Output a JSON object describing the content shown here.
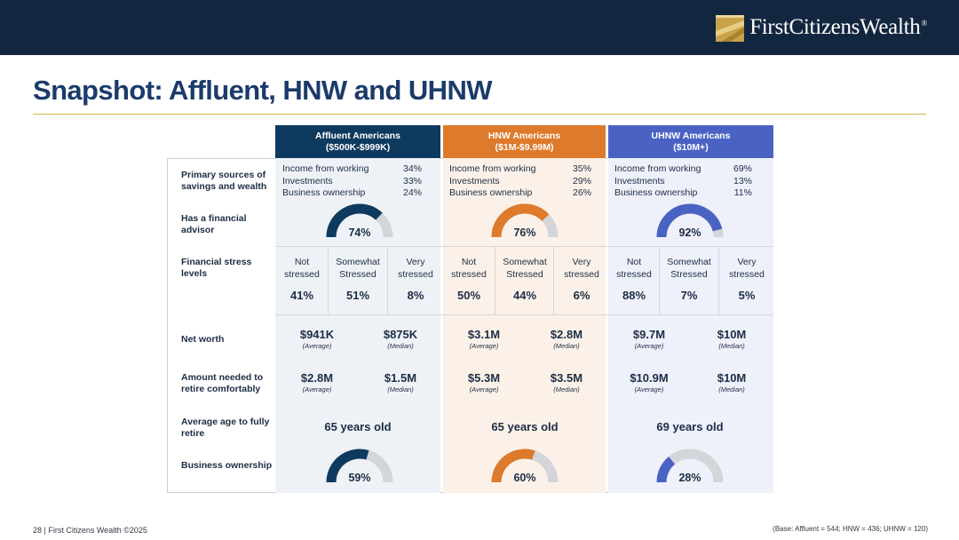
{
  "header": {
    "brand": "FirstCitizensWealth",
    "reg": "®",
    "colors": {
      "bar": "#12263f",
      "gold": "#c9a24a"
    }
  },
  "title": "Snapshot: Affluent, HNW and UHNW",
  "row_labels": {
    "sources": "Primary sources of savings and wealth",
    "advisor": "Has a financial advisor",
    "stress": "Financial stress levels",
    "networth": "Net worth",
    "retire_amount": "Amount needed to retire comfortably",
    "retire_age": "Average age to fully retire",
    "business": "Business ownership"
  },
  "segments": [
    {
      "name": "Affluent Americans",
      "range": "($500K-$999K)",
      "color": "#0e3a5f",
      "bg": "#eef2f7",
      "sources": [
        {
          "label": "Income from working",
          "value": "34%"
        },
        {
          "label": "Investments",
          "value": "33%"
        },
        {
          "label": "Business ownership",
          "value": "24%"
        }
      ],
      "advisor": {
        "label": "74%",
        "value": 0.74
      },
      "stress": [
        {
          "label": "Not stressed",
          "value": "41%"
        },
        {
          "label": "Somewhat Stressed",
          "value": "51%"
        },
        {
          "label": "Very stressed",
          "value": "8%"
        }
      ],
      "networth": [
        {
          "value": "$941K",
          "sub": "(Average)"
        },
        {
          "value": "$875K",
          "sub": "(Median)"
        }
      ],
      "retire_amount": [
        {
          "value": "$2.8M",
          "sub": "(Average)"
        },
        {
          "value": "$1.5M",
          "sub": "(Median)"
        }
      ],
      "retire_age": "65 years old",
      "business": {
        "label": "59%",
        "value": 0.59
      }
    },
    {
      "name": "HNW Americans",
      "range": "($1M-$9.99M)",
      "color": "#dd7a2b",
      "bg": "#fcf1e8",
      "sources": [
        {
          "label": "Income from working",
          "value": "35%"
        },
        {
          "label": "Investments",
          "value": "29%"
        },
        {
          "label": "Business ownership",
          "value": "26%"
        }
      ],
      "advisor": {
        "label": "76%",
        "value": 0.76
      },
      "stress": [
        {
          "label": "Not stressed",
          "value": "50%"
        },
        {
          "label": "Somewhat Stressed",
          "value": "44%"
        },
        {
          "label": "Very stressed",
          "value": "6%"
        }
      ],
      "networth": [
        {
          "value": "$3.1M",
          "sub": "(Average)"
        },
        {
          "value": "$2.8M",
          "sub": "(Median)"
        }
      ],
      "retire_amount": [
        {
          "value": "$5.3M",
          "sub": "(Average)"
        },
        {
          "value": "$3.5M",
          "sub": "(Median)"
        }
      ],
      "retire_age": "65 years old",
      "business": {
        "label": "60%",
        "value": 0.6
      }
    },
    {
      "name": "UHNW Americans",
      "range": "($10M+)",
      "color": "#4a63c3",
      "bg": "#eef0fa",
      "sources": [
        {
          "label": "Income from working",
          "value": "69%"
        },
        {
          "label": "Investments",
          "value": "13%"
        },
        {
          "label": "Business ownership",
          "value": "11%"
        }
      ],
      "advisor": {
        "label": "92%",
        "value": 0.92
      },
      "stress": [
        {
          "label": "Not stressed",
          "value": "88%"
        },
        {
          "label": "Somewhat Stressed",
          "value": "7%"
        },
        {
          "label": "Very stressed",
          "value": "5%"
        }
      ],
      "networth": [
        {
          "value": "$9.7M",
          "sub": "(Average)"
        },
        {
          "value": "$10M",
          "sub": "(Median)"
        }
      ],
      "retire_amount": [
        {
          "value": "$10.9M",
          "sub": "(Average)"
        },
        {
          "value": "$10M",
          "sub": "(Median)"
        }
      ],
      "retire_age": "69 years old",
      "business": {
        "label": "28%",
        "value": 0.28
      }
    }
  ],
  "footer": {
    "left": "28  |  First Citizens Wealth ©2025",
    "right": "(Base: Affluent = 544; HNW = 436; UHNW = 120)"
  }
}
